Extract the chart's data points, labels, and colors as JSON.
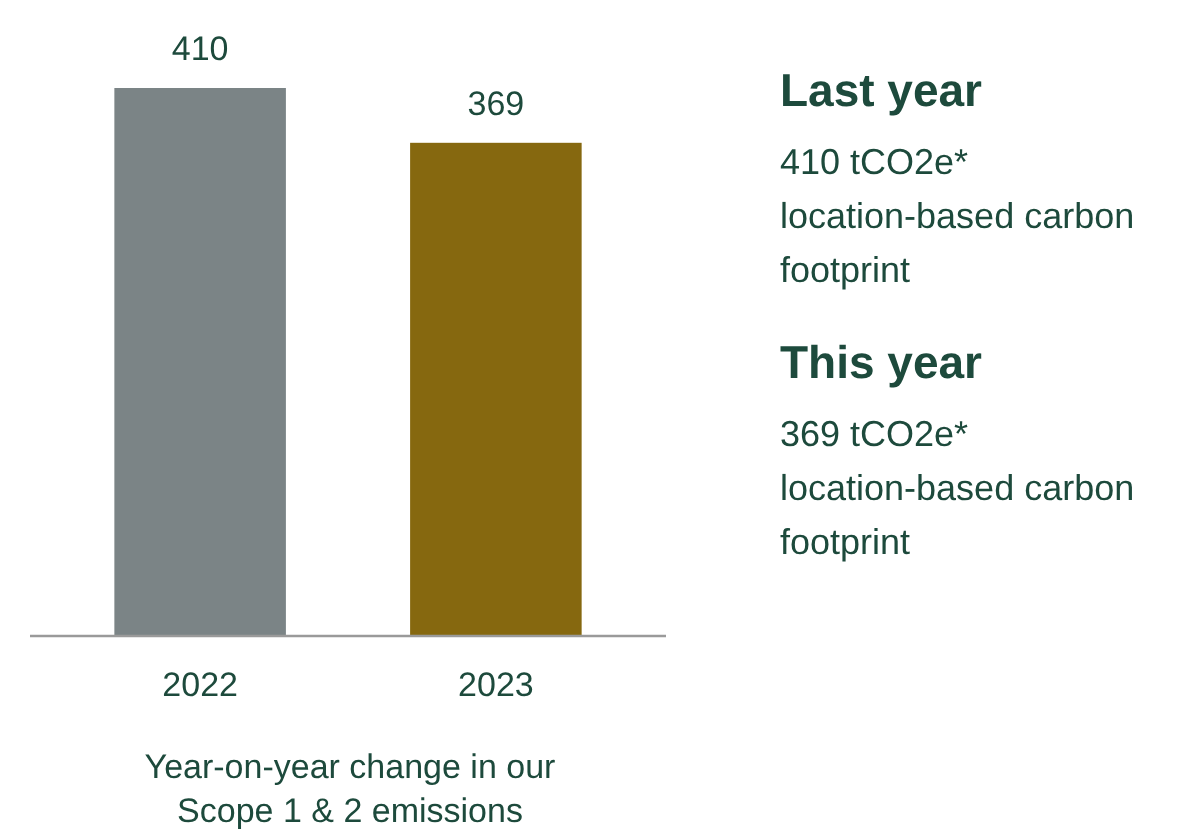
{
  "chart_data": {
    "type": "bar",
    "categories": [
      "2022",
      "2023"
    ],
    "values": [
      410,
      369
    ],
    "colors": [
      "#7b8486",
      "#86680f"
    ],
    "data_labels": true,
    "xlabel": "Year-on-year change in our Scope 1 & 2 emissions",
    "annotations": [
      "Last year",
      "410 tCO2e* location-based carbon footprint",
      "This year",
      "369 tCO2e* location-based carbon footprint"
    ]
  }
}
